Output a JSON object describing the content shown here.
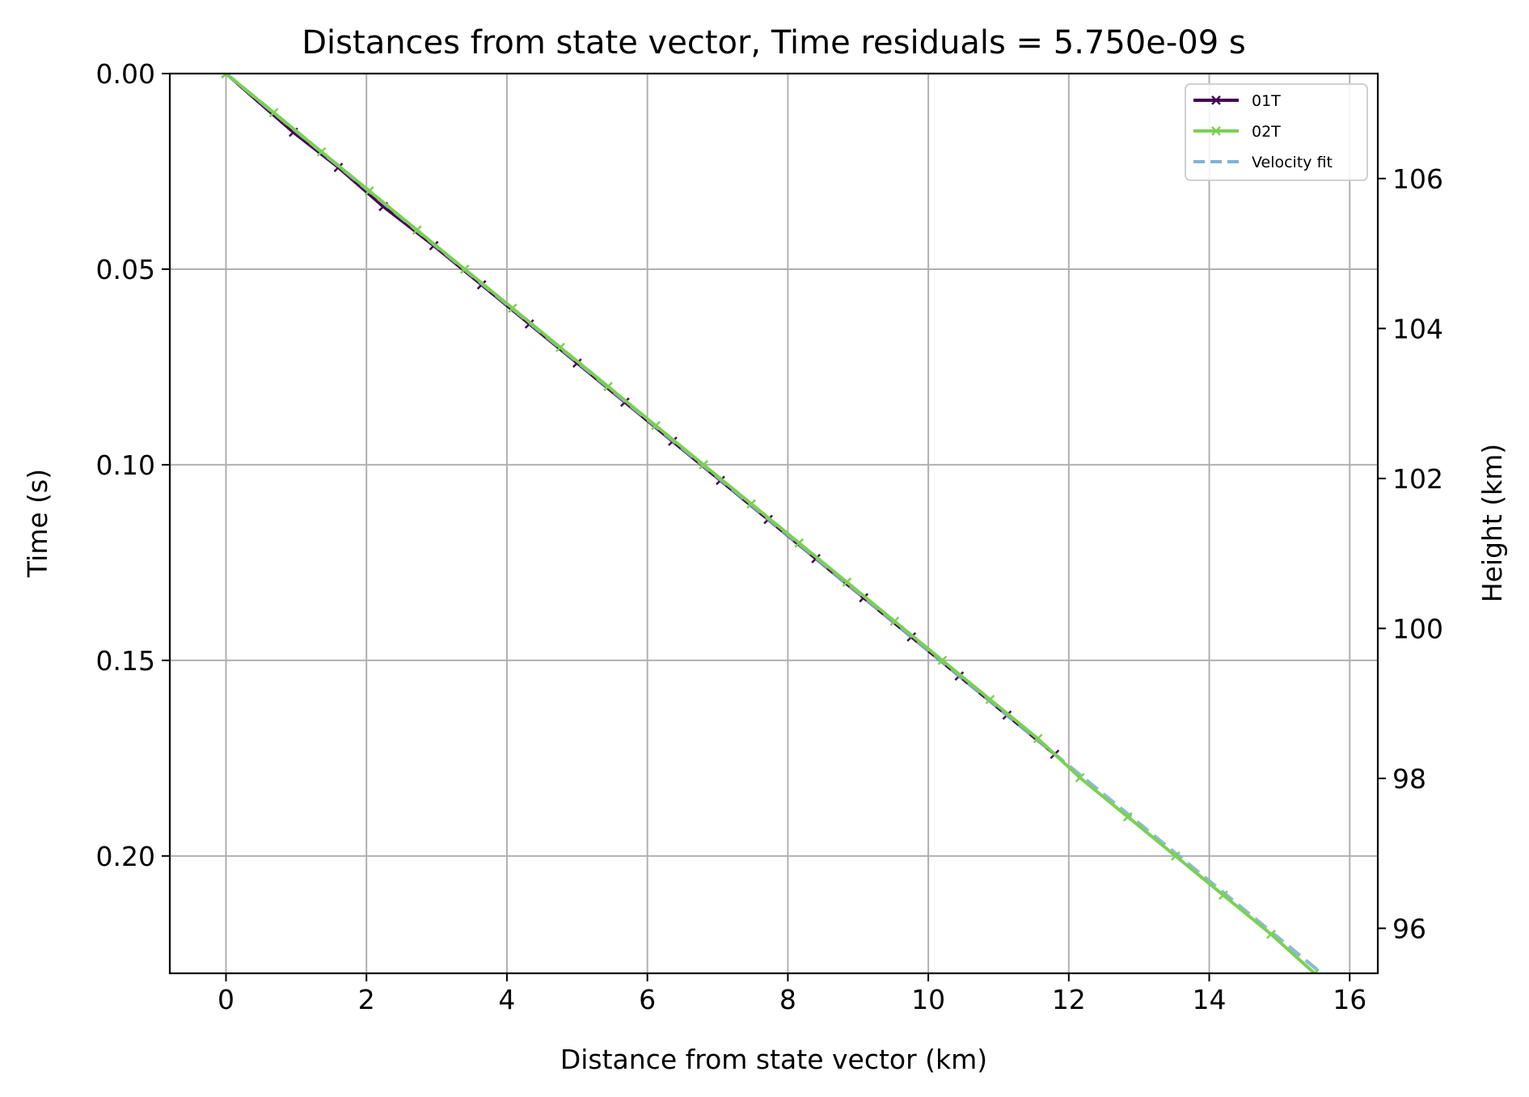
{
  "chart_data": {
    "type": "line",
    "title": "Distances from state vector, Time residuals = 5.750e-09 s",
    "xlabel": "Distance from state vector (km)",
    "ylabel": "Time (s)",
    "y2label": "Height (km)",
    "xlim": [
      -0.8,
      16.4
    ],
    "ylim": [
      0.23,
      0.0
    ],
    "y_inverted": true,
    "y2lim": [
      95.4,
      107.4
    ],
    "xticks": [
      "0",
      "2",
      "4",
      "6",
      "8",
      "10",
      "12",
      "14",
      "16"
    ],
    "yticks": [
      "0.00",
      "0.05",
      "0.10",
      "0.15",
      "0.20"
    ],
    "y2ticks": [
      "96",
      "98",
      "100",
      "102",
      "104",
      "106"
    ],
    "grid": true,
    "legend_position": "upper-right",
    "series": [
      {
        "name": "01T",
        "color": "#440154",
        "marker": "x",
        "x": [
          0,
          0.96,
          1.6,
          2.24,
          2.96,
          3.64,
          4.32,
          5.0,
          5.68,
          6.36,
          7.04,
          7.72,
          8.4,
          9.08,
          9.76,
          10.44,
          11.12,
          11.8
        ],
        "y": [
          0,
          0.015,
          0.024,
          0.034,
          0.044,
          0.054,
          0.064,
          0.074,
          0.084,
          0.094,
          0.104,
          0.114,
          0.124,
          0.134,
          0.144,
          0.154,
          0.164,
          0.174
        ]
      },
      {
        "name": "02T",
        "color": "#7ad151",
        "marker": "x",
        "x": [
          0,
          0.68,
          1.36,
          2.04,
          2.72,
          3.4,
          4.08,
          4.76,
          5.44,
          6.12,
          6.8,
          7.48,
          8.16,
          8.84,
          9.52,
          10.2,
          10.88,
          11.56,
          12.16,
          12.84,
          13.52,
          14.2,
          14.88,
          15.5
        ],
        "y": [
          0,
          0.01,
          0.02,
          0.03,
          0.04,
          0.05,
          0.06,
          0.07,
          0.08,
          0.09,
          0.1,
          0.11,
          0.12,
          0.13,
          0.14,
          0.15,
          0.16,
          0.17,
          0.18,
          0.19,
          0.2,
          0.21,
          0.22,
          0.23
        ]
      },
      {
        "name": "Velocity fit",
        "color": "#7fb2d5",
        "dashed": true,
        "x": [
          0,
          15.6
        ],
        "y": [
          0,
          0.23
        ]
      }
    ]
  }
}
